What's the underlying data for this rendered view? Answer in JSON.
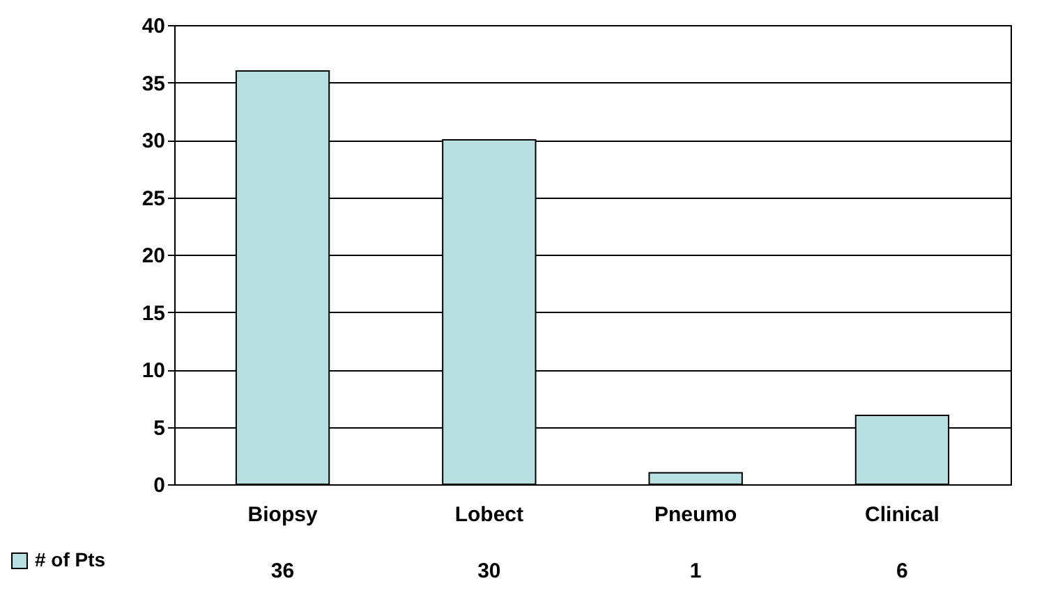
{
  "chart_data": {
    "type": "bar",
    "categories": [
      "Biopsy",
      "Lobect",
      "Pneumo",
      "Clinical"
    ],
    "series": [
      {
        "name": "# of Pts",
        "color": "#b8e0e0",
        "values": [
          36,
          30,
          1,
          6
        ]
      }
    ],
    "ylim": [
      0,
      40
    ],
    "yticks": [
      0,
      5,
      10,
      15,
      20,
      25,
      30,
      35,
      40
    ],
    "grid": "y",
    "legend": "bottom left",
    "data_labels": true
  }
}
